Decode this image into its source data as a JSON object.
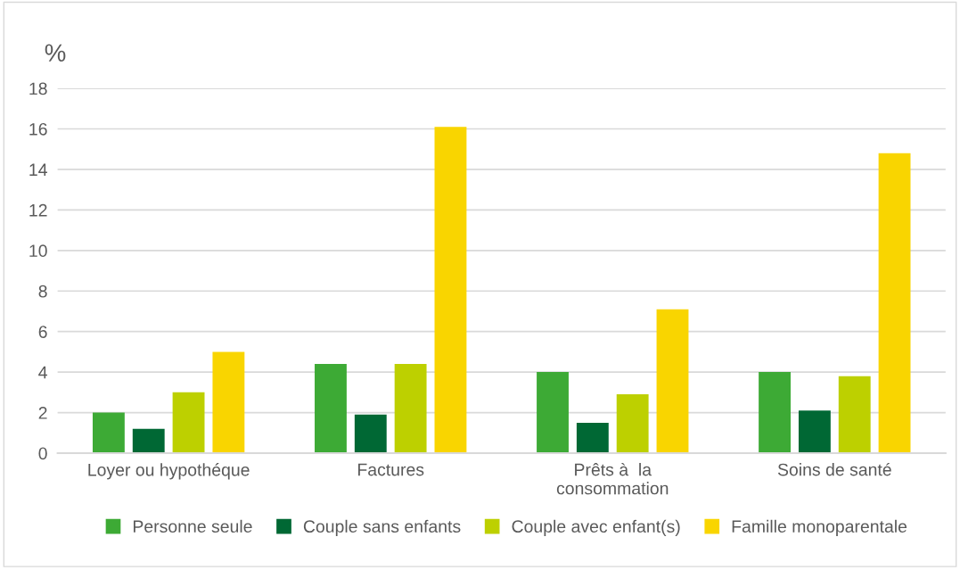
{
  "chart_data": {
    "type": "bar",
    "ylabel": "%",
    "categories": [
      "Loyer ou hypothéque",
      "Factures",
      "Prêts à  la\nconsommation",
      "Soins de santé"
    ],
    "series": [
      {
        "name": "Personne seule",
        "color": "#3daa35",
        "values": [
          2.0,
          4.4,
          4.0,
          4.0
        ]
      },
      {
        "name": "Couple sans enfants",
        "color": "#006834",
        "values": [
          1.2,
          1.9,
          1.5,
          2.1
        ]
      },
      {
        "name": "Couple avec enfant(s)",
        "color": "#bdd000",
        "values": [
          3.0,
          4.4,
          2.9,
          3.8
        ]
      },
      {
        "name": "Famille monoparentale",
        "color": "#f9d500",
        "values": [
          5.0,
          16.1,
          7.1,
          14.8
        ]
      }
    ],
    "ylim": [
      0,
      18
    ],
    "yticks": [
      0,
      2,
      4,
      6,
      8,
      10,
      12,
      14,
      16,
      18
    ],
    "grid": "y",
    "legend": "bottom"
  }
}
